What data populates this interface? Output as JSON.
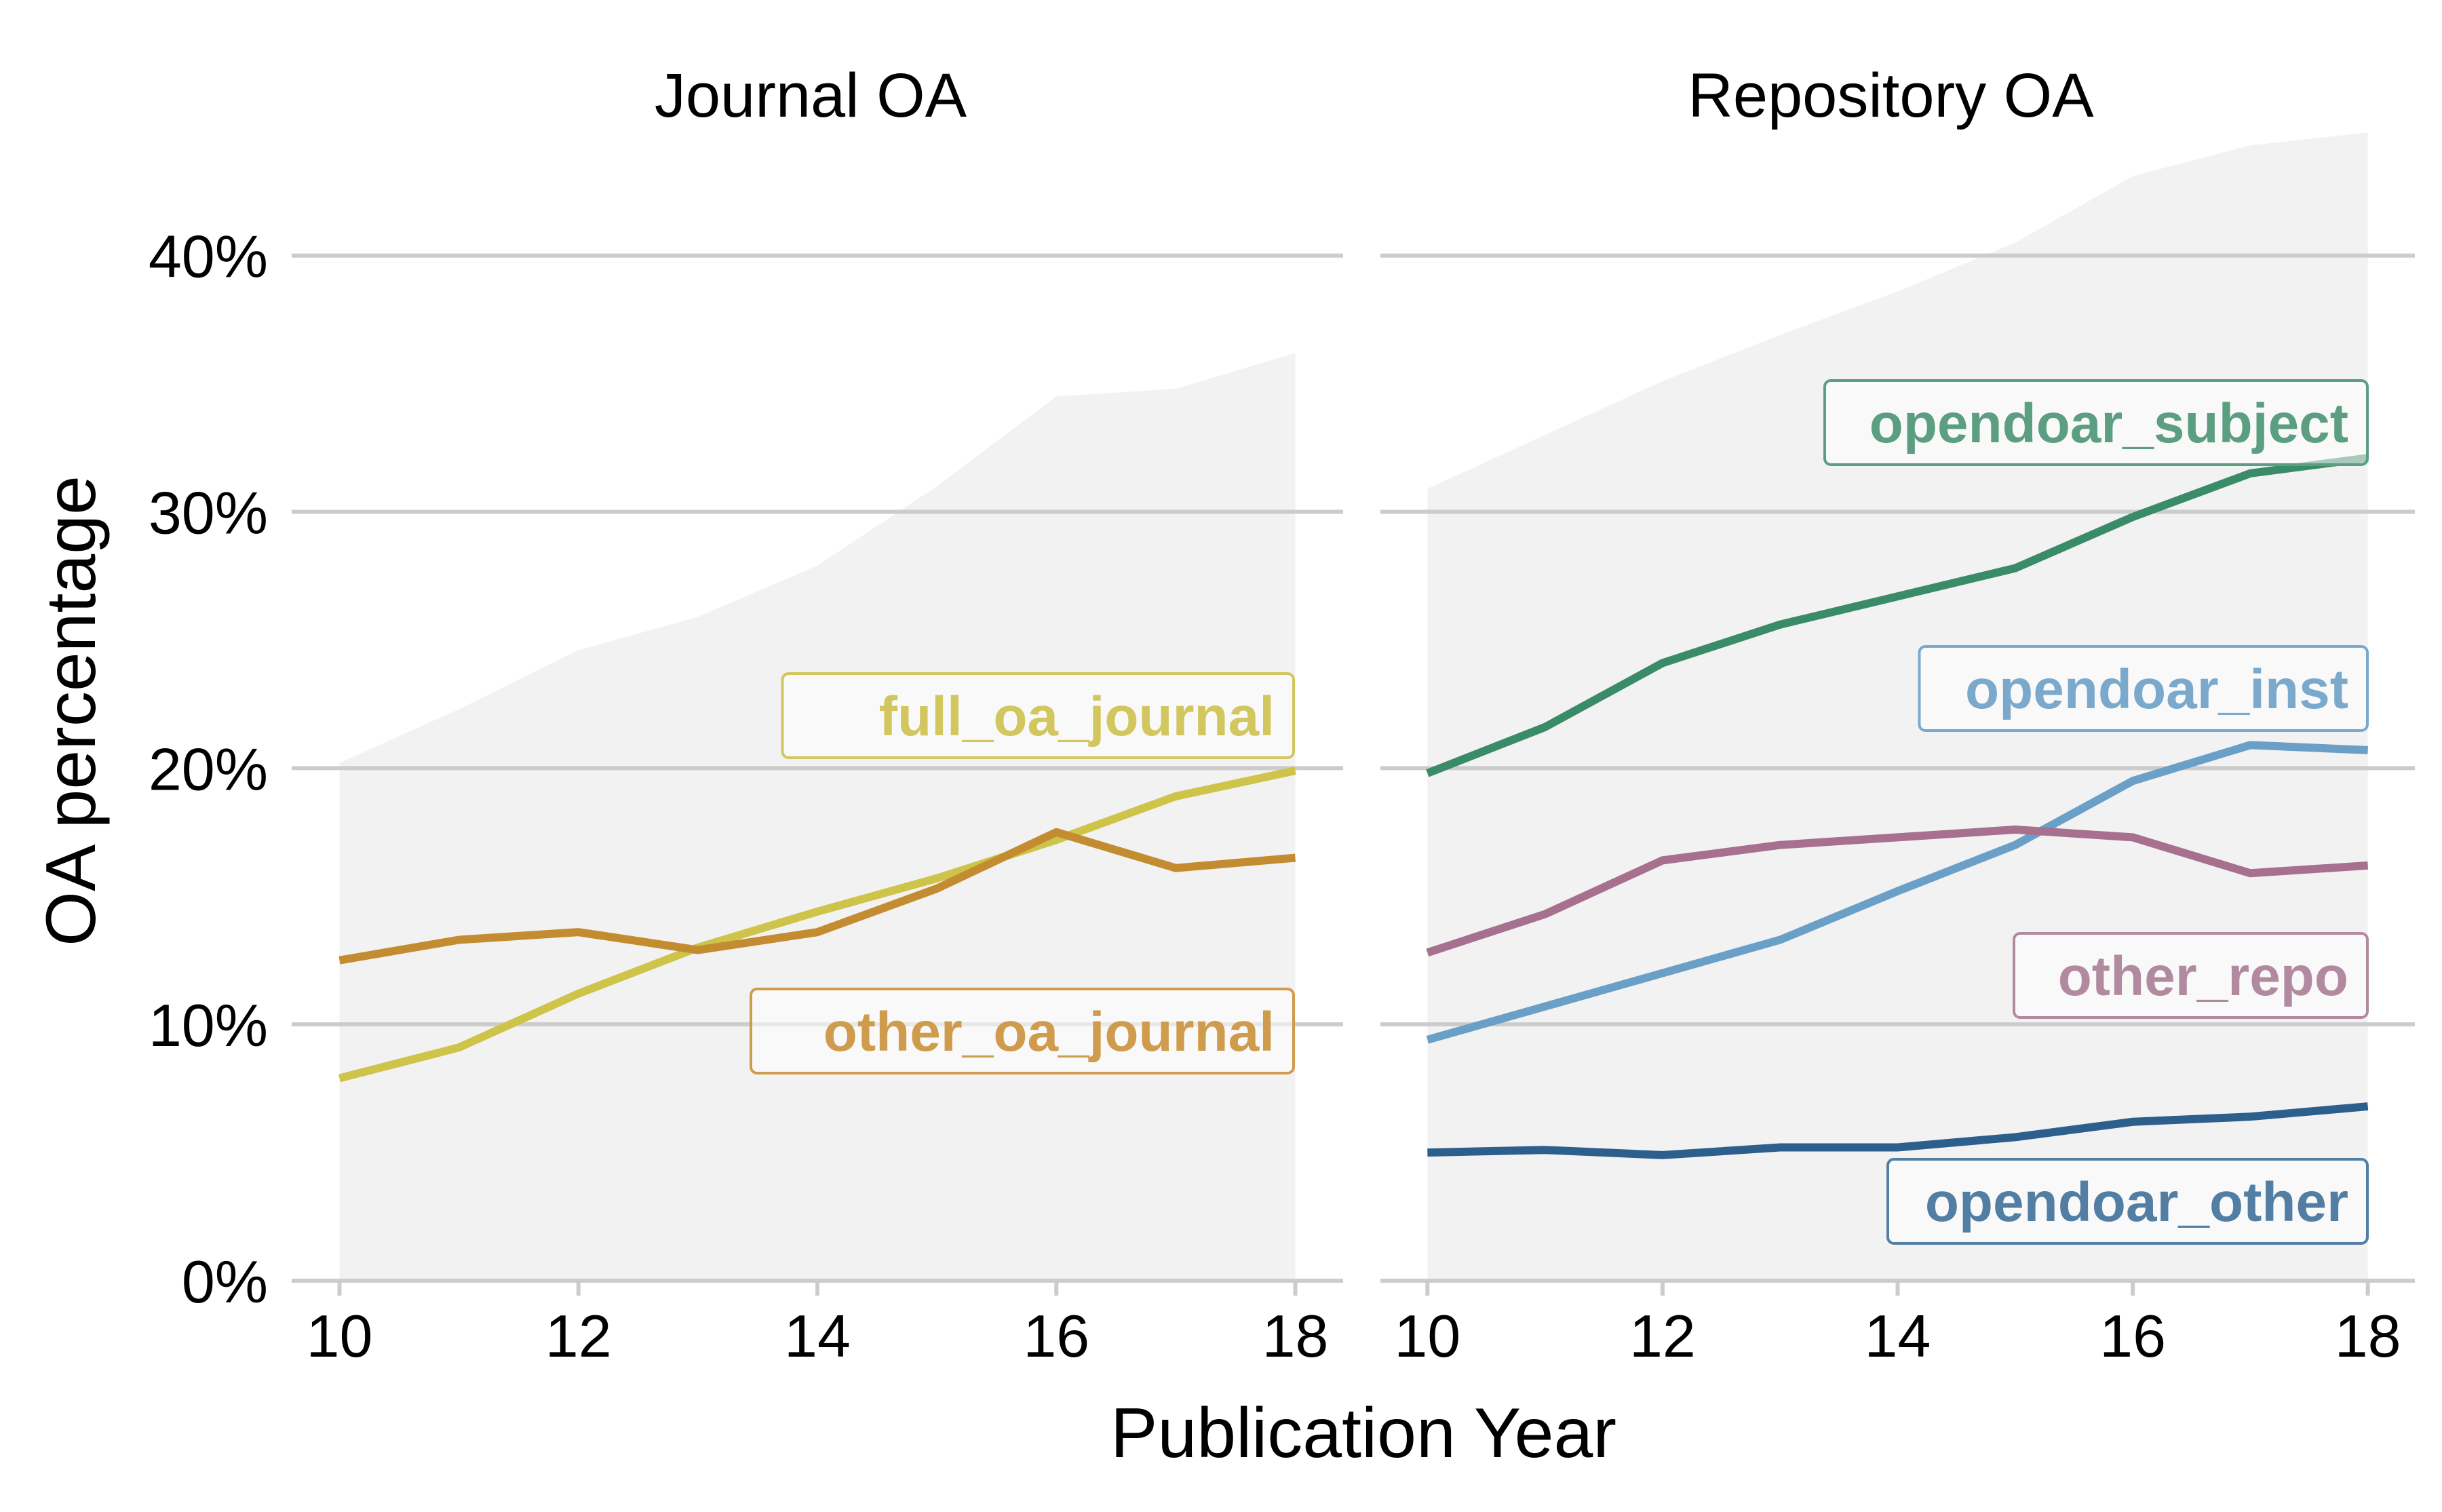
{
  "chart_data": {
    "type": "line",
    "xlabel": "Publication Year",
    "ylabel": "OA percentage",
    "x": [
      10,
      11,
      12,
      13,
      14,
      15,
      16,
      17,
      18
    ],
    "xticks": [
      "10",
      "12",
      "14",
      "16",
      "18"
    ],
    "xtick_values": [
      10,
      12,
      14,
      16,
      18
    ],
    "yticks": [
      "0%",
      "10%",
      "20%",
      "30%",
      "40%"
    ],
    "ytick_values": [
      0,
      10,
      20,
      30,
      40
    ],
    "ylim": [
      0,
      46
    ],
    "xlim": [
      9.6,
      18.4
    ],
    "grid": "horizontal",
    "panels": [
      {
        "title": "Journal OA",
        "total_area": [
          20.2,
          22.3,
          24.6,
          25.9,
          27.9,
          31.0,
          34.5,
          34.8,
          36.2
        ],
        "series": [
          {
            "name": "full_oa_journal",
            "color": "#CEC44A",
            "values": [
              7.9,
              9.1,
              11.2,
              13.0,
              14.4,
              15.7,
              17.2,
              18.9,
              19.9
            ]
          },
          {
            "name": "other_oa_journal",
            "color": "#C38C30",
            "values": [
              12.5,
              13.3,
              13.6,
              12.9,
              13.6,
              15.3,
              17.5,
              16.1,
              16.5
            ]
          }
        ]
      },
      {
        "title": "Repository OA",
        "total_area": [
          30.9,
          33.0,
          35.1,
          36.9,
          38.6,
          40.5,
          43.1,
          44.3,
          44.8
        ],
        "series": [
          {
            "name": "opendoar_subject",
            "color": "#3A8B68",
            "values": [
              19.8,
              21.6,
              24.1,
              25.6,
              26.7,
              27.8,
              29.8,
              31.5,
              32.1
            ]
          },
          {
            "name": "opendoar_inst",
            "color": "#6A9FC7",
            "values": [
              9.4,
              10.7,
              12.0,
              13.3,
              15.2,
              17.0,
              19.5,
              20.9,
              20.7
            ]
          },
          {
            "name": "other_repo",
            "color": "#A6708E",
            "values": [
              12.8,
              14.3,
              16.4,
              17.0,
              17.3,
              17.6,
              17.3,
              15.9,
              16.2
            ]
          },
          {
            "name": "opendoar_other",
            "color": "#2D5F8D",
            "values": [
              5.0,
              5.1,
              4.9,
              5.2,
              5.2,
              5.6,
              6.2,
              6.4,
              6.8
            ]
          }
        ]
      }
    ],
    "label_colors": {
      "full_oa_journal": "#D2C65E",
      "other_oa_journal": "#CF9B4C",
      "opendoar_subject": "#5B9E81",
      "opendoar_inst": "#7AA9CC",
      "other_repo": "#B18AA0",
      "opendoar_other": "#537EA4"
    },
    "area_color": "#F2F2F2",
    "grid_color": "#CCCCCC"
  }
}
